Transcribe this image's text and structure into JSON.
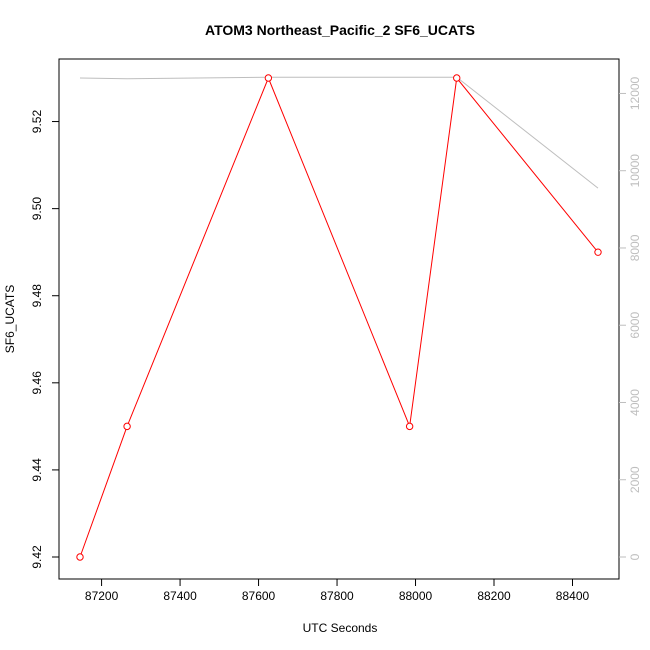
{
  "chart_data": {
    "type": "line",
    "title": "ATOM3 Northeast_Pacific_2 SF6_UCATS",
    "xlabel": "UTC Seconds",
    "ylabel": "SF6_UCATS",
    "xlim": [
      87145,
      88465
    ],
    "ylim": [
      9.42,
      9.53
    ],
    "x_ticks": [
      87200,
      87400,
      87600,
      87800,
      88000,
      88200,
      88400
    ],
    "y_ticks": [
      9.42,
      9.44,
      9.46,
      9.48,
      9.5,
      9.52
    ],
    "y_tick_labels": [
      "9.42",
      "9.44",
      "9.46",
      "9.48",
      "9.50",
      "9.52"
    ],
    "series": [
      {
        "color": "#ff0000",
        "marker": "open-circle",
        "axis": "left",
        "x": [
          87145,
          87265,
          87625,
          87985,
          88105,
          88465
        ],
        "y": [
          9.42,
          9.45,
          9.53,
          9.45,
          9.53,
          9.49
        ]
      },
      {
        "color": "#bebebe",
        "marker": "none",
        "axis": "right",
        "x": [
          87145,
          87265,
          87625,
          87985,
          88105,
          88465
        ],
        "y": [
          12400,
          12380,
          12420,
          12420,
          12420,
          9550
        ]
      }
    ],
    "right_axis": {
      "ylim": [
        0,
        12400
      ],
      "ticks": [
        0,
        2000,
        4000,
        6000,
        8000,
        10000,
        12000
      ],
      "color": "#bebebe"
    },
    "grid": false,
    "legend": "none"
  }
}
